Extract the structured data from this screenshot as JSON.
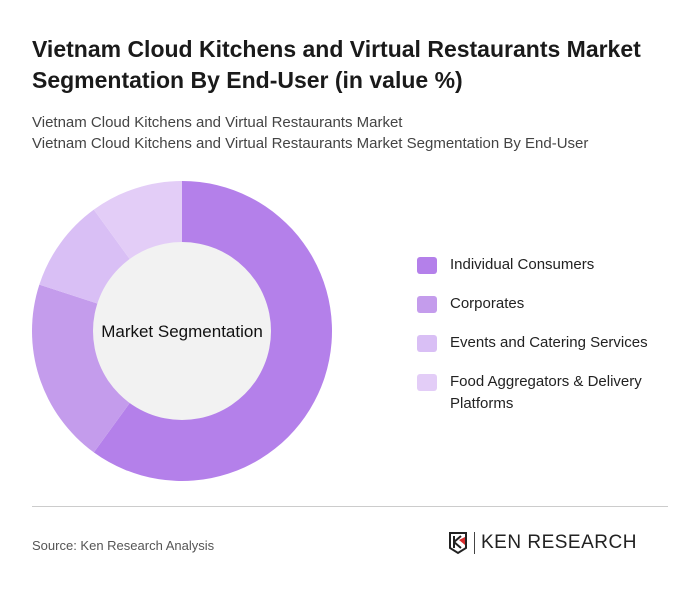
{
  "title": "Vietnam Cloud Kitchens and Virtual Restaurants Market Segmentation By End-User (in value %)",
  "subtitle1": "Vietnam Cloud Kitchens and Virtual Restaurants Market",
  "subtitle2": "Vietnam Cloud Kitchens and Virtual Restaurants Market Segmentation By End-User",
  "source": "Source: Ken Research Analysis",
  "logo_text": "KEN RESEARCH",
  "chart_data": {
    "type": "pie",
    "donut": true,
    "center_label": "Market Segmentation",
    "legend_position": "right",
    "categories": [
      "Individual Consumers",
      "Corporates",
      "Events and Catering Services",
      "Food Aggregators & Delivery Platforms"
    ],
    "values": [
      60,
      20,
      10,
      10
    ],
    "colors": [
      "#b480ea",
      "#c49cec",
      "#d9bff5",
      "#e3cdf7"
    ]
  }
}
